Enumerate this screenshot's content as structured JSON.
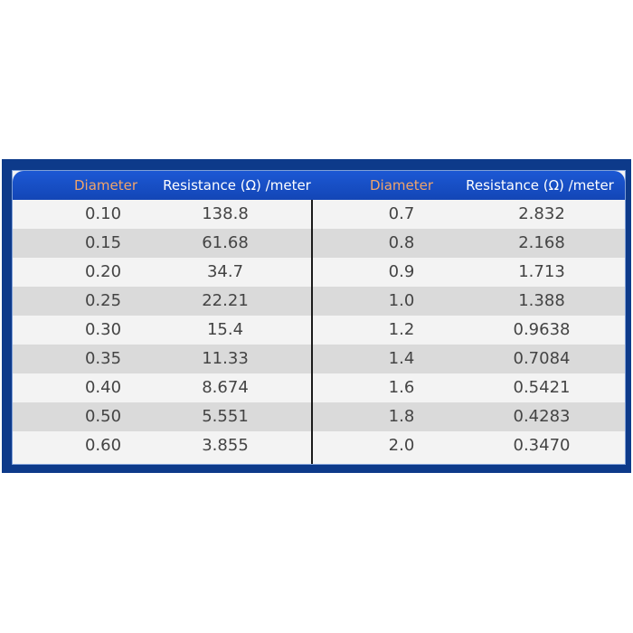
{
  "table": {
    "headers": {
      "left_diameter": "Diameter",
      "left_resistance": "Resistance  (Ω)  /meter",
      "right_diameter": "Diameter",
      "right_resistance": "Resistance  (Ω)  /meter"
    },
    "colors": {
      "frame": "#0d3a8a",
      "header": "#1c58d4",
      "diameter_header_text": "#f1a46a",
      "row_light": "#f3f3f3",
      "row_dark": "#dadada"
    },
    "rows": [
      {
        "d1": "0.10",
        "r1": "138.8",
        "d2": "0.7",
        "r2": "2.832"
      },
      {
        "d1": "0.15",
        "r1": "61.68",
        "d2": "0.8",
        "r2": "2.168"
      },
      {
        "d1": "0.20",
        "r1": "34.7",
        "d2": "0.9",
        "r2": "1.713"
      },
      {
        "d1": "0.25",
        "r1": "22.21",
        "d2": "1.0",
        "r2": "1.388"
      },
      {
        "d1": "0.30",
        "r1": "15.4",
        "d2": "1.2",
        "r2": "0.9638"
      },
      {
        "d1": "0.35",
        "r1": "11.33",
        "d2": "1.4",
        "r2": "0.7084"
      },
      {
        "d1": "0.40",
        "r1": "8.674",
        "d2": "1.6",
        "r2": "0.5421"
      },
      {
        "d1": "0.50",
        "r1": "5.551",
        "d2": "1.8",
        "r2": "0.4283"
      },
      {
        "d1": "0.60",
        "r1": "3.855",
        "d2": "2.0",
        "r2": "0.3470"
      }
    ]
  }
}
